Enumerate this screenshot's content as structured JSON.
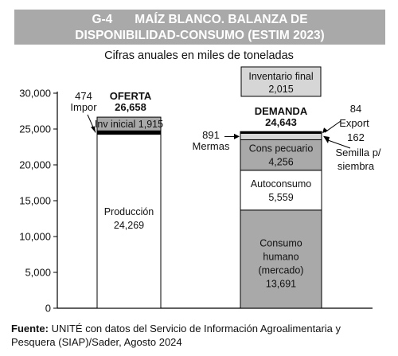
{
  "header": {
    "code": "G-4",
    "title_line1": "MAÍZ BLANCO. BALANZA DE",
    "title_line2": "DISPONIBILIDAD-CONSUMO (ESTIM 2023)"
  },
  "subtitle": "Cifras anuales en miles de toneladas",
  "source": {
    "label": "Fuente:",
    "text": "UNITÉ con datos del Servicio de Información Agroalimentaria y Pesquera (SIAP)/Sader, Agosto 2024"
  },
  "colors": {
    "header_bg": "#a9a9a9",
    "gray_fill": "#a9a9a9",
    "light_fill": "#d6d6d6",
    "white_fill": "#ffffff",
    "black": "#000000"
  },
  "chart_data": {
    "type": "bar",
    "stacked": true,
    "ylim": [
      0,
      30000
    ],
    "yticks": [
      0,
      5000,
      10000,
      15000,
      20000,
      25000,
      30000
    ],
    "ytick_labels": [
      "0",
      "5,000",
      "10,000",
      "15,000",
      "20,000",
      "25,000",
      "30,000"
    ],
    "grid": false,
    "bars": [
      {
        "name": "OFERTA",
        "total_label": "26,658",
        "segments": [
          {
            "label": "Producción",
            "value_label": "24,269",
            "value": 24269,
            "fill": "white"
          },
          {
            "label": "Impor",
            "value_label": "474",
            "value": 474,
            "fill": "black"
          },
          {
            "label": "Inv inicial",
            "value_label": "1,915",
            "value": 1915,
            "fill": "gray"
          }
        ]
      },
      {
        "name": "DEMANDA",
        "total_label": "24,643",
        "segments": [
          {
            "label": "Consumo humano (mercado)",
            "value_label": "13,691",
            "value": 13691,
            "fill": "gray"
          },
          {
            "label": "Autoconsumo",
            "value_label": "5,559",
            "value": 5559,
            "fill": "white"
          },
          {
            "label": "Cons pecuario",
            "value_label": "4,256",
            "value": 4256,
            "fill": "gray"
          },
          {
            "label": "Mermas",
            "value_label": "891",
            "value": 891,
            "fill": "light"
          },
          {
            "label": "Semilla p/ siembra",
            "value_label": "162",
            "value": 162,
            "fill": "black"
          },
          {
            "label": "Export",
            "value_label": "84",
            "value": 84,
            "fill": "black"
          }
        ]
      }
    ],
    "extra_box": {
      "label": "Inventario final",
      "value_label": "2,015",
      "value": 2015
    }
  }
}
